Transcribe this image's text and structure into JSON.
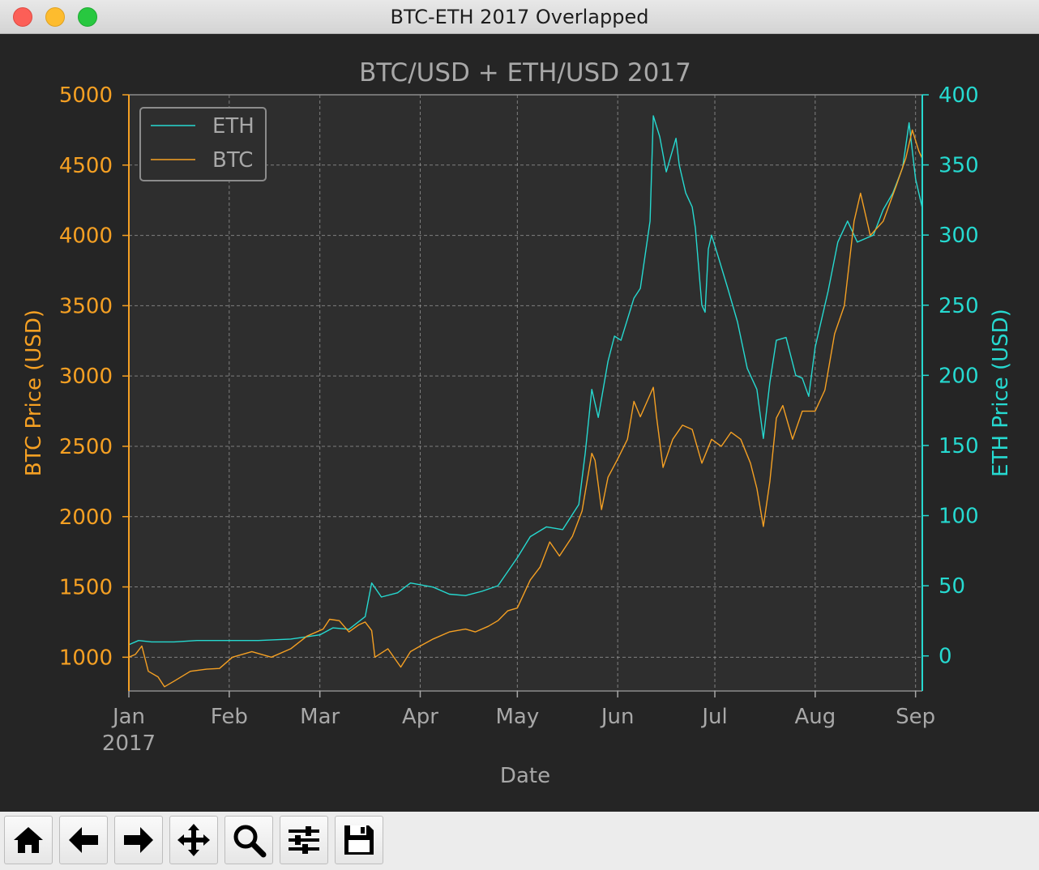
{
  "window": {
    "title": "BTC-ETH 2017 Overlapped"
  },
  "toolbar": {
    "buttons": [
      {
        "icon": "home-icon",
        "tooltip": "Home"
      },
      {
        "icon": "back-arrow-icon",
        "tooltip": "Back"
      },
      {
        "icon": "forward-arrow-icon",
        "tooltip": "Forward"
      },
      {
        "icon": "pan-icon",
        "tooltip": "Pan"
      },
      {
        "icon": "zoom-icon",
        "tooltip": "Zoom"
      },
      {
        "icon": "sliders-icon",
        "tooltip": "Configure subplots"
      },
      {
        "icon": "save-icon",
        "tooltip": "Save"
      }
    ]
  },
  "colors": {
    "btc": "#f5a023",
    "eth": "#26d9d0",
    "figure_bg": "#252525",
    "axes_bg": "#2e2e2e",
    "text": "#a8a8a8",
    "grid": "#9a9a9a"
  },
  "chart_data": {
    "type": "line",
    "title": "BTC/USD + ETH/USD 2017",
    "xlabel": "Date",
    "ylabel_left": "BTC Price (USD)",
    "ylabel_right": "ETH Price (USD)",
    "x_tick_labels": [
      "Jan",
      "Feb",
      "Mar",
      "Apr",
      "May",
      "Jun",
      "Jul",
      "Aug",
      "Sep"
    ],
    "x_tick_sublabel": "2017",
    "x_tick_dates": [
      "2017-01-01",
      "2017-02-01",
      "2017-03-01",
      "2017-04-01",
      "2017-05-01",
      "2017-06-01",
      "2017-07-01",
      "2017-08-01",
      "2017-09-01"
    ],
    "xlim": [
      "2017-01-01",
      "2017-09-01"
    ],
    "ylim_left": [
      760,
      5000
    ],
    "ylim_right": [
      -25,
      400
    ],
    "yticks_left": [
      1000,
      1500,
      2000,
      2500,
      3000,
      3500,
      4000,
      4500,
      5000
    ],
    "yticks_right": [
      0,
      50,
      100,
      150,
      200,
      250,
      300,
      350,
      400
    ],
    "grid": true,
    "legend_position": "upper-left",
    "legend": [
      "ETH",
      "BTC"
    ],
    "series": [
      {
        "name": "ETH",
        "axis": "right",
        "points": [
          [
            "2017-01-01",
            8
          ],
          [
            "2017-01-04",
            11
          ],
          [
            "2017-01-08",
            10
          ],
          [
            "2017-01-15",
            10
          ],
          [
            "2017-01-22",
            11
          ],
          [
            "2017-02-01",
            11
          ],
          [
            "2017-02-10",
            11
          ],
          [
            "2017-02-20",
            12
          ],
          [
            "2017-03-01",
            15
          ],
          [
            "2017-03-05",
            20
          ],
          [
            "2017-03-10",
            19
          ],
          [
            "2017-03-15",
            28
          ],
          [
            "2017-03-17",
            52
          ],
          [
            "2017-03-20",
            42
          ],
          [
            "2017-03-25",
            45
          ],
          [
            "2017-03-29",
            52
          ],
          [
            "2017-04-05",
            49
          ],
          [
            "2017-04-10",
            44
          ],
          [
            "2017-04-15",
            43
          ],
          [
            "2017-04-20",
            46
          ],
          [
            "2017-04-25",
            50
          ],
          [
            "2017-05-01",
            70
          ],
          [
            "2017-05-05",
            85
          ],
          [
            "2017-05-10",
            92
          ],
          [
            "2017-05-15",
            90
          ],
          [
            "2017-05-20",
            108
          ],
          [
            "2017-05-22",
            145
          ],
          [
            "2017-05-24",
            190
          ],
          [
            "2017-05-26",
            170
          ],
          [
            "2017-05-29",
            210
          ],
          [
            "2017-05-31",
            228
          ],
          [
            "2017-06-02",
            225
          ],
          [
            "2017-06-06",
            255
          ],
          [
            "2017-06-08",
            262
          ],
          [
            "2017-06-11",
            310
          ],
          [
            "2017-06-12",
            385
          ],
          [
            "2017-06-14",
            370
          ],
          [
            "2017-06-16",
            345
          ],
          [
            "2017-06-19",
            369
          ],
          [
            "2017-06-20",
            350
          ],
          [
            "2017-06-22",
            330
          ],
          [
            "2017-06-24",
            320
          ],
          [
            "2017-06-25",
            305
          ],
          [
            "2017-06-27",
            250
          ],
          [
            "2017-06-28",
            245
          ],
          [
            "2017-06-29",
            290
          ],
          [
            "2017-06-30",
            300
          ],
          [
            "2017-07-02",
            285
          ],
          [
            "2017-07-05",
            262
          ],
          [
            "2017-07-08",
            238
          ],
          [
            "2017-07-11",
            205
          ],
          [
            "2017-07-14",
            190
          ],
          [
            "2017-07-16",
            155
          ],
          [
            "2017-07-18",
            195
          ],
          [
            "2017-07-20",
            225
          ],
          [
            "2017-07-23",
            227
          ],
          [
            "2017-07-26",
            200
          ],
          [
            "2017-07-28",
            198
          ],
          [
            "2017-07-30",
            185
          ],
          [
            "2017-08-01",
            220
          ],
          [
            "2017-08-05",
            260
          ],
          [
            "2017-08-08",
            295
          ],
          [
            "2017-08-11",
            310
          ],
          [
            "2017-08-14",
            295
          ],
          [
            "2017-08-17",
            298
          ],
          [
            "2017-08-19",
            300
          ],
          [
            "2017-08-22",
            318
          ],
          [
            "2017-08-25",
            330
          ],
          [
            "2017-08-28",
            348
          ],
          [
            "2017-08-30",
            380
          ],
          [
            "2017-09-01",
            340
          ],
          [
            "2017-09-03",
            320
          ]
        ]
      },
      {
        "name": "BTC",
        "axis": "left",
        "points": [
          [
            "2017-01-01",
            1000
          ],
          [
            "2017-01-03",
            1020
          ],
          [
            "2017-01-05",
            1080
          ],
          [
            "2017-01-07",
            900
          ],
          [
            "2017-01-10",
            860
          ],
          [
            "2017-01-12",
            790
          ],
          [
            "2017-01-15",
            830
          ],
          [
            "2017-01-20",
            900
          ],
          [
            "2017-01-25",
            915
          ],
          [
            "2017-01-29",
            920
          ],
          [
            "2017-02-02",
            1000
          ],
          [
            "2017-02-08",
            1040
          ],
          [
            "2017-02-14",
            1000
          ],
          [
            "2017-02-20",
            1060
          ],
          [
            "2017-02-25",
            1150
          ],
          [
            "2017-03-02",
            1200
          ],
          [
            "2017-03-04",
            1270
          ],
          [
            "2017-03-07",
            1260
          ],
          [
            "2017-03-10",
            1180
          ],
          [
            "2017-03-13",
            1230
          ],
          [
            "2017-03-15",
            1250
          ],
          [
            "2017-03-17",
            1190
          ],
          [
            "2017-03-18",
            1000
          ],
          [
            "2017-03-22",
            1060
          ],
          [
            "2017-03-26",
            930
          ],
          [
            "2017-03-29",
            1040
          ],
          [
            "2017-04-01",
            1080
          ],
          [
            "2017-04-05",
            1130
          ],
          [
            "2017-04-10",
            1180
          ],
          [
            "2017-04-15",
            1200
          ],
          [
            "2017-04-18",
            1180
          ],
          [
            "2017-04-22",
            1220
          ],
          [
            "2017-04-25",
            1260
          ],
          [
            "2017-04-28",
            1330
          ],
          [
            "2017-05-01",
            1350
          ],
          [
            "2017-05-05",
            1550
          ],
          [
            "2017-05-08",
            1640
          ],
          [
            "2017-05-11",
            1820
          ],
          [
            "2017-05-14",
            1720
          ],
          [
            "2017-05-18",
            1860
          ],
          [
            "2017-05-21",
            2040
          ],
          [
            "2017-05-24",
            2450
          ],
          [
            "2017-05-25",
            2400
          ],
          [
            "2017-05-27",
            2050
          ],
          [
            "2017-05-29",
            2280
          ],
          [
            "2017-06-01",
            2410
          ],
          [
            "2017-06-04",
            2550
          ],
          [
            "2017-06-06",
            2820
          ],
          [
            "2017-06-08",
            2710
          ],
          [
            "2017-06-12",
            2920
          ],
          [
            "2017-06-13",
            2710
          ],
          [
            "2017-06-15",
            2350
          ],
          [
            "2017-06-18",
            2550
          ],
          [
            "2017-06-21",
            2650
          ],
          [
            "2017-06-24",
            2620
          ],
          [
            "2017-06-27",
            2380
          ],
          [
            "2017-06-30",
            2550
          ],
          [
            "2017-07-03",
            2500
          ],
          [
            "2017-07-06",
            2600
          ],
          [
            "2017-07-09",
            2550
          ],
          [
            "2017-07-12",
            2380
          ],
          [
            "2017-07-14",
            2200
          ],
          [
            "2017-07-16",
            1930
          ],
          [
            "2017-07-18",
            2250
          ],
          [
            "2017-07-20",
            2700
          ],
          [
            "2017-07-22",
            2790
          ],
          [
            "2017-07-25",
            2550
          ],
          [
            "2017-07-28",
            2750
          ],
          [
            "2017-08-01",
            2750
          ],
          [
            "2017-08-04",
            2900
          ],
          [
            "2017-08-07",
            3300
          ],
          [
            "2017-08-10",
            3500
          ],
          [
            "2017-08-13",
            4100
          ],
          [
            "2017-08-15",
            4300
          ],
          [
            "2017-08-18",
            4000
          ],
          [
            "2017-08-22",
            4100
          ],
          [
            "2017-08-26",
            4350
          ],
          [
            "2017-08-29",
            4550
          ],
          [
            "2017-08-31",
            4750
          ],
          [
            "2017-09-02",
            4600
          ],
          [
            "2017-09-03",
            4550
          ]
        ]
      }
    ]
  }
}
